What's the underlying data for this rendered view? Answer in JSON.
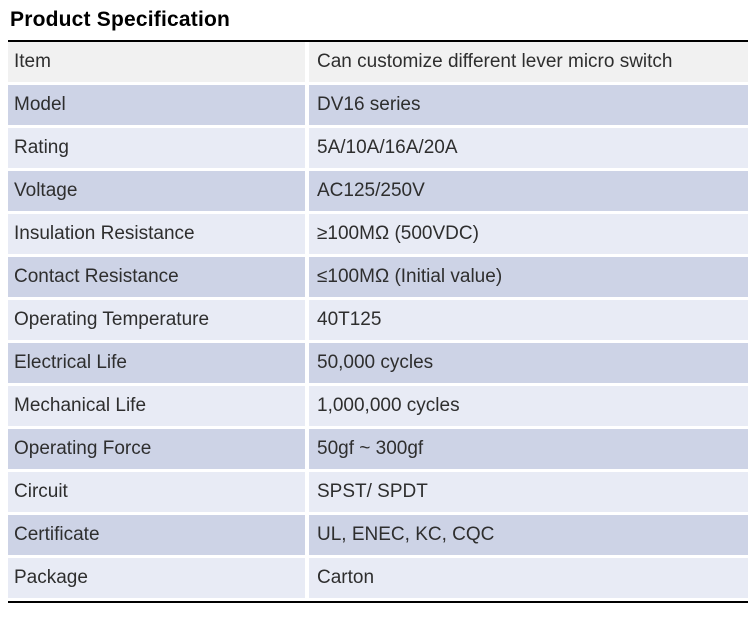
{
  "page": {
    "title": "Product Specification"
  },
  "colors": {
    "header_bg": "#f1f1f1",
    "row_medium": "#cdd3e6",
    "row_light": "#e8ebf5",
    "rule_black": "#000000",
    "text": "#2e2e2e",
    "gap_white": "#ffffff"
  },
  "table": {
    "rows": [
      {
        "key": "Item",
        "value": "Can customize different lever micro switch",
        "variant": "header"
      },
      {
        "key": "Model",
        "value": "DV16 series",
        "variant": "medium"
      },
      {
        "key": "Rating",
        "value": "5A/10A/16A/20A",
        "variant": "light"
      },
      {
        "key": "Voltage",
        "value": "AC125/250V",
        "variant": "medium"
      },
      {
        "key": "Insulation Resistance",
        "value": "≥100MΩ (500VDC)",
        "variant": "light"
      },
      {
        "key": "Contact Resistance",
        "value": "≤100MΩ (Initial value)",
        "variant": "medium"
      },
      {
        "key": "Operating Temperature",
        "value": "40T125",
        "variant": "light"
      },
      {
        "key": "Electrical Life",
        "value": "50,000 cycles",
        "variant": "medium"
      },
      {
        "key": "Mechanical Life",
        "value": "1,000,000 cycles",
        "variant": "light"
      },
      {
        "key": "Operating Force",
        "value": "50gf ~ 300gf",
        "variant": "medium"
      },
      {
        "key": "Circuit",
        "value": "SPST/ SPDT",
        "variant": "light"
      },
      {
        "key": "Certificate",
        "value": "UL, ENEC, KC, CQC",
        "variant": "medium"
      },
      {
        "key": "Package",
        "value": "Carton",
        "variant": "light"
      }
    ]
  }
}
